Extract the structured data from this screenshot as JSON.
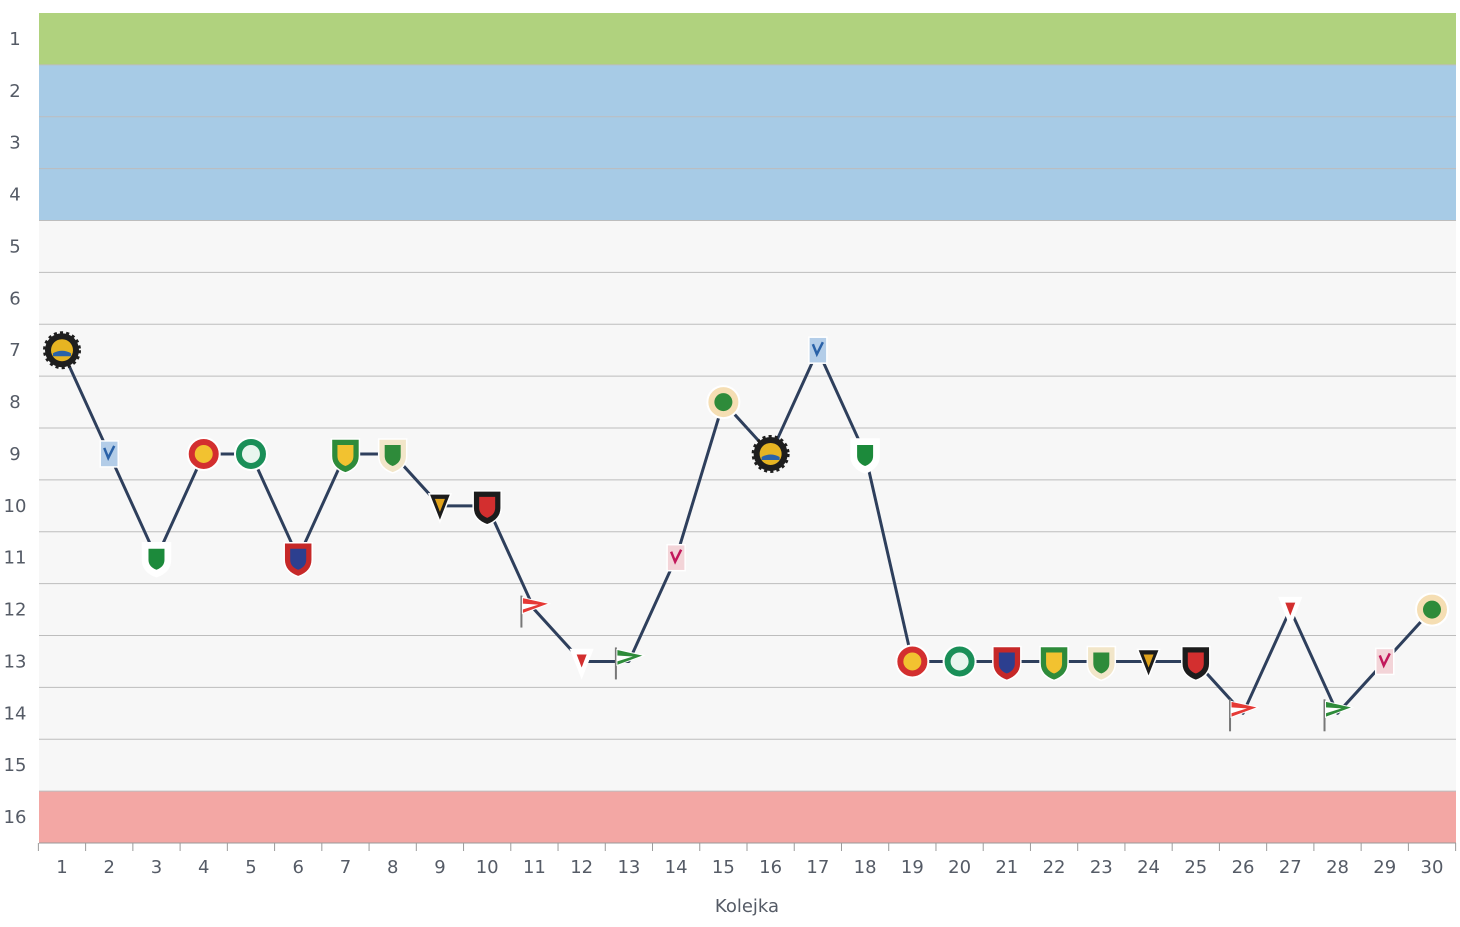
{
  "chart_data": {
    "type": "line",
    "title": "",
    "xlabel": "Kolejka",
    "ylabel": "",
    "x": [
      1,
      2,
      3,
      4,
      5,
      6,
      7,
      8,
      9,
      10,
      11,
      12,
      13,
      14,
      15,
      16,
      17,
      18,
      19,
      20,
      21,
      22,
      23,
      24,
      25,
      26,
      27,
      28,
      29,
      30
    ],
    "y": [
      7,
      9,
      11,
      9,
      9,
      11,
      9,
      9,
      10,
      10,
      12,
      13,
      13,
      11,
      8,
      9,
      7,
      9,
      13,
      13,
      13,
      13,
      13,
      13,
      13,
      14,
      12,
      14,
      13,
      12
    ],
    "xlim": [
      1,
      30
    ],
    "ylim": [
      1,
      16
    ],
    "y_inverted": true,
    "yticks": [
      1,
      2,
      3,
      4,
      5,
      6,
      7,
      8,
      9,
      10,
      11,
      12,
      13,
      14,
      15,
      16
    ],
    "grid": true,
    "zones": [
      {
        "from": 1,
        "to": 1,
        "color": "#b0d27e"
      },
      {
        "from": 2,
        "to": 4,
        "color": "#a7cbe6"
      },
      {
        "from": 5,
        "to": 15,
        "color": "#f7f7f7"
      },
      {
        "from": 16,
        "to": 16,
        "color": "#f3a7a4"
      }
    ],
    "series": [
      {
        "values": [
          7,
          9,
          11,
          9,
          9,
          11,
          9,
          9,
          10,
          10,
          12,
          13,
          13,
          11,
          8,
          9,
          7,
          9,
          13,
          13,
          13,
          13,
          13,
          13,
          13,
          14,
          12,
          14,
          13,
          12
        ],
        "color": "#2e3f5c"
      }
    ],
    "marker_icons": [
      "crest-gold-gear-icon",
      "crest-blue-square-icon",
      "crest-white-green-shield-icon",
      "crest-red-yellow-round-icon",
      "crest-green-round-icon",
      "crest-red-blue-shield-icon",
      "crest-green-yellow-shield-icon",
      "crest-green-red-shield-icon",
      "crest-red-yellow-pennant-icon",
      "crest-black-red-shield-icon",
      "crest-red-flag-icon",
      "crest-red-blue-pennant-icon",
      "crest-green-white-flag-icon",
      "crest-red-white-banner-icon",
      "crest-green-yellow-round-icon",
      "crest-gold-gear-icon",
      "crest-blue-square-icon",
      "crest-white-green-shield-icon",
      "crest-red-yellow-round-icon",
      "crest-green-round-icon",
      "crest-red-blue-shield-icon",
      "crest-green-yellow-shield-icon",
      "crest-green-red-shield-icon",
      "crest-red-yellow-pennant-icon",
      "crest-black-red-shield-icon",
      "crest-red-flag-icon",
      "crest-red-blue-pennant-icon",
      "crest-green-white-flag-icon",
      "crest-red-white-banner-icon",
      "crest-green-yellow-round-icon"
    ]
  }
}
